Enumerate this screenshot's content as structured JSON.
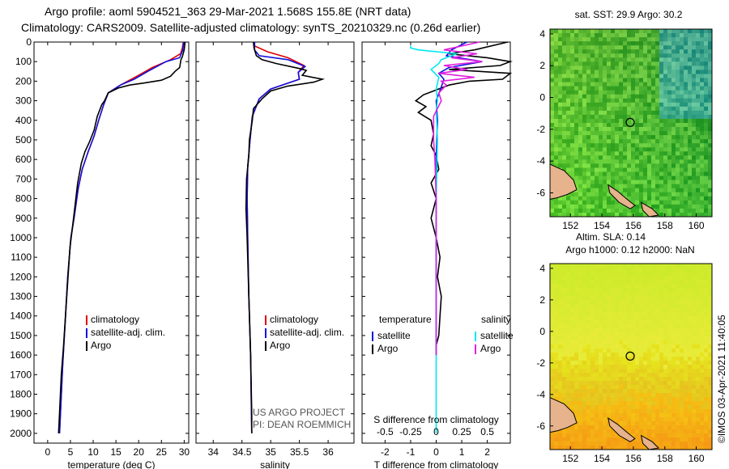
{
  "header": {
    "line1": "Argo profile: aoml 5904521_363 29-Mar-2021 1.568S 155.8E (NRT data)",
    "line2": "Climatology: CARS2009. Satellite-adjusted climatology: synTS_20210329.nc (0.26d earlier)"
  },
  "colors": {
    "argo": "#000000",
    "clim": "#e00000",
    "sat": "#1010e0",
    "sat_sal": "#00e8f0",
    "argo_sal": "#e020e0"
  },
  "chart_data": [
    {
      "type": "line",
      "id": "temperature",
      "xlabel": "temperature (deg C)",
      "xlim": [
        -3,
        31
      ],
      "ylim": [
        2050,
        0
      ],
      "xticks": [
        0,
        5,
        10,
        15,
        20,
        25,
        30
      ],
      "yticks": [
        0,
        100,
        200,
        300,
        400,
        500,
        600,
        700,
        800,
        900,
        1000,
        1100,
        1200,
        1300,
        1400,
        1500,
        1600,
        1700,
        1800,
        1900,
        2000
      ],
      "series": [
        {
          "name": "climatology",
          "color": "#e00000",
          "points": [
            [
              29.8,
              0
            ],
            [
              29.6,
              30
            ],
            [
              29.2,
              60
            ],
            [
              27,
              90
            ],
            [
              23,
              130
            ],
            [
              20,
              170
            ],
            [
              16,
              220
            ],
            [
              13.3,
              260
            ],
            [
              12.3,
              320
            ],
            [
              11.2,
              400
            ],
            [
              10.2,
              480
            ],
            [
              8.9,
              560
            ],
            [
              7.6,
              650
            ],
            [
              6.7,
              750
            ],
            [
              5.8,
              900
            ],
            [
              5.1,
              1000
            ],
            [
              4.4,
              1200
            ],
            [
              3.8,
              1450
            ],
            [
              3.3,
              1650
            ],
            [
              2.6,
              2000
            ]
          ]
        },
        {
          "name": "satellite-adj. clim.",
          "color": "#1010e0",
          "points": [
            [
              29.9,
              0
            ],
            [
              29.7,
              40
            ],
            [
              29.0,
              80
            ],
            [
              26,
              100
            ],
            [
              22,
              150
            ],
            [
              19,
              190
            ],
            [
              16,
              220
            ],
            [
              13.3,
              260
            ],
            [
              12.3,
              320
            ],
            [
              11.2,
              400
            ],
            [
              10.2,
              480
            ],
            [
              8.9,
              560
            ],
            [
              7.6,
              650
            ],
            [
              6.7,
              750
            ],
            [
              5.8,
              900
            ],
            [
              5.1,
              1000
            ],
            [
              4.4,
              1200
            ],
            [
              3.8,
              1450
            ],
            [
              3.3,
              1650
            ],
            [
              2.6,
              2000
            ]
          ]
        },
        {
          "name": "Argo",
          "color": "#000000",
          "points": [
            [
              30.2,
              0
            ],
            [
              30.0,
              40
            ],
            [
              29.6,
              75
            ],
            [
              29.3,
              90
            ],
            [
              29.0,
              130
            ],
            [
              28.0,
              150
            ],
            [
              27,
              175
            ],
            [
              25,
              195
            ],
            [
              21,
              210
            ],
            [
              18,
              220
            ],
            [
              15.5,
              235
            ],
            [
              13.3,
              260
            ],
            [
              12.5,
              300
            ],
            [
              11.9,
              320
            ],
            [
              10.9,
              380
            ],
            [
              10.2,
              450
            ],
            [
              9.2,
              510
            ],
            [
              8.2,
              560
            ],
            [
              7.4,
              620
            ],
            [
              6.6,
              720
            ],
            [
              5.8,
              880
            ],
            [
              4.9,
              1050
            ],
            [
              4.2,
              1300
            ],
            [
              3.5,
              1550
            ],
            [
              3.0,
              1700
            ],
            [
              2.5,
              1950
            ],
            [
              2.4,
              2000
            ]
          ]
        }
      ],
      "legend": [
        "climatology",
        "satellite-adj. clim.",
        "Argo"
      ]
    },
    {
      "type": "line",
      "id": "salinity",
      "xlabel": "salinity",
      "xlim": [
        33.7,
        36.45
      ],
      "ylim": [
        2050,
        0
      ],
      "xticks": [
        34,
        34.5,
        35,
        35.5,
        36
      ],
      "series": [
        {
          "name": "climatology",
          "color": "#e00000",
          "points": [
            [
              34.72,
              0
            ],
            [
              34.72,
              20
            ],
            [
              34.95,
              50
            ],
            [
              35.3,
              80
            ],
            [
              35.58,
              120
            ],
            [
              35.48,
              155
            ],
            [
              35.5,
              190
            ],
            [
              35.0,
              240
            ],
            [
              34.8,
              290
            ],
            [
              34.68,
              380
            ],
            [
              34.64,
              500
            ],
            [
              34.6,
              640
            ],
            [
              34.59,
              800
            ],
            [
              34.6,
              1000
            ],
            [
              34.62,
              1300
            ],
            [
              34.65,
              1600
            ],
            [
              34.67,
              2000
            ]
          ]
        },
        {
          "name": "satellite-adj. clim.",
          "color": "#1010e0",
          "points": [
            [
              34.72,
              0
            ],
            [
              34.72,
              40
            ],
            [
              34.8,
              70
            ],
            [
              35.3,
              90
            ],
            [
              35.6,
              125
            ],
            [
              35.48,
              155
            ],
            [
              35.5,
              190
            ],
            [
              35.0,
              240
            ],
            [
              34.8,
              290
            ],
            [
              34.68,
              380
            ],
            [
              34.64,
              500
            ],
            [
              34.6,
              640
            ],
            [
              34.59,
              800
            ],
            [
              34.6,
              1000
            ],
            [
              34.62,
              1300
            ],
            [
              34.65,
              1600
            ],
            [
              34.67,
              2000
            ]
          ]
        },
        {
          "name": "Argo",
          "color": "#000000",
          "points": [
            [
              34.7,
              0
            ],
            [
              34.71,
              30
            ],
            [
              34.75,
              70
            ],
            [
              34.85,
              90
            ],
            [
              35.1,
              110
            ],
            [
              35.5,
              135
            ],
            [
              35.62,
              145
            ],
            [
              35.55,
              170
            ],
            [
              35.9,
              190
            ],
            [
              35.75,
              205
            ],
            [
              35.3,
              225
            ],
            [
              35.0,
              250
            ],
            [
              34.85,
              290
            ],
            [
              34.7,
              340
            ],
            [
              34.68,
              400
            ],
            [
              34.63,
              500
            ],
            [
              34.62,
              580
            ],
            [
              34.58,
              700
            ],
            [
              34.57,
              850
            ],
            [
              34.59,
              1000
            ],
            [
              34.62,
              1300
            ],
            [
              34.65,
              1600
            ],
            [
              34.67,
              1900
            ],
            [
              34.67,
              2000
            ]
          ]
        }
      ],
      "legend": [
        "climatology",
        "satellite-adj. clim.",
        "Argo"
      ],
      "annotation": [
        "US ARGO PROJECT",
        "PI: DEAN ROEMMICH"
      ]
    },
    {
      "type": "line",
      "id": "difference",
      "xlabel": "T difference from climatology",
      "xlabel2": "S difference from climatology",
      "xlim": [
        -2.9,
        2.9
      ],
      "ylim": [
        2050,
        0
      ],
      "xticks": [
        -2,
        -1,
        0,
        1,
        2
      ],
      "xticks2": [
        -0.5,
        -0.25,
        0,
        0.25,
        0.5
      ],
      "series": [
        {
          "name": "temperature Argo",
          "color": "#000000",
          "points": [
            [
              2.8,
              0
            ],
            [
              1.5,
              40
            ],
            [
              0.5,
              60
            ],
            [
              2.0,
              80
            ],
            [
              2.9,
              100
            ],
            [
              2.5,
              120
            ],
            [
              0.5,
              140
            ],
            [
              2.9,
              160
            ],
            [
              2.6,
              190
            ],
            [
              1.3,
              200
            ],
            [
              0.5,
              220
            ],
            [
              -0.5,
              270
            ],
            [
              -0.8,
              300
            ],
            [
              -0.4,
              330
            ],
            [
              -0.7,
              360
            ],
            [
              -0.2,
              400
            ],
            [
              -0.1,
              470
            ],
            [
              -0.2,
              530
            ],
            [
              0.0,
              580
            ],
            [
              0.1,
              650
            ],
            [
              -0.2,
              720
            ],
            [
              0.0,
              800
            ],
            [
              -0.2,
              900
            ],
            [
              0.0,
              1000
            ],
            [
              0.15,
              1100
            ],
            [
              0.05,
              1200
            ],
            [
              0.2,
              1300
            ],
            [
              0.15,
              1400
            ],
            [
              0.1,
              1500
            ],
            [
              0.0,
              1550
            ],
            [
              0.0,
              1600
            ]
          ]
        },
        {
          "name": "temperature satellite",
          "color": "#1010e0",
          "points": [
            [
              1.2,
              0
            ],
            [
              0.6,
              40
            ],
            [
              0.4,
              70
            ],
            [
              1.8,
              100
            ],
            [
              0.5,
              130
            ],
            [
              0.1,
              160
            ],
            [
              0.3,
              190
            ],
            [
              0.2,
              230
            ],
            [
              0.0,
              300
            ],
            [
              0.05,
              400
            ],
            [
              0.0,
              600
            ],
            [
              0.0,
              1000
            ],
            [
              0.0,
              1600
            ]
          ]
        },
        {
          "name": "salinity satellite",
          "color": "#00e8f0",
          "points": [
            [
              -1.0,
              20
            ],
            [
              -1.0,
              30
            ],
            [
              -0.7,
              40
            ],
            [
              0.8,
              60
            ],
            [
              0.2,
              90
            ],
            [
              0.1,
              110
            ],
            [
              -0.2,
              140
            ],
            [
              0.1,
              180
            ],
            [
              0.0,
              240
            ],
            [
              0.05,
              300
            ],
            [
              0.0,
              350
            ],
            [
              0.05,
              500
            ],
            [
              0.0,
              800
            ],
            [
              0.0,
              1200
            ],
            [
              0.0,
              1600
            ],
            [
              0.0,
              2000
            ]
          ]
        },
        {
          "name": "salinity Argo",
          "color": "#e020e0",
          "points": [
            [
              1.7,
              0
            ],
            [
              0.3,
              40
            ],
            [
              1.6,
              60
            ],
            [
              0.6,
              80
            ],
            [
              1.8,
              100
            ],
            [
              0.3,
              120
            ],
            [
              1.2,
              140
            ],
            [
              0.1,
              160
            ],
            [
              1.5,
              180
            ],
            [
              0.2,
              200
            ],
            [
              0.4,
              220
            ],
            [
              0.1,
              260
            ],
            [
              0.2,
              300
            ],
            [
              -0.1,
              380
            ],
            [
              -0.1,
              500
            ],
            [
              -0.05,
              600
            ],
            [
              0.0,
              800
            ],
            [
              0.0,
              1000
            ],
            [
              0.0,
              1300
            ],
            [
              0.0,
              1600
            ]
          ]
        }
      ],
      "legend_left_title": "temperature",
      "legend_right_title": "salinity",
      "legend_items": [
        "satellite",
        "Argo"
      ]
    }
  ],
  "maps": {
    "top_title": "sat. SST: 29.9 Argo: 30.2",
    "bottom_title_1": "Altim. SLA: 0.14",
    "bottom_title_2": "Argo h1000: 0.12 h2000: NaN",
    "yticks": [
      4,
      2,
      0,
      -2,
      -4,
      -6
    ],
    "xticks": [
      152,
      154,
      156,
      158,
      160
    ],
    "lon_range": [
      150.7,
      161.0
    ],
    "lat_range": [
      -7.5,
      4.3
    ],
    "marker": {
      "lon": 155.8,
      "lat": -1.568
    }
  },
  "credit": "©IMOS 03-Apr-2021 11:40:05"
}
